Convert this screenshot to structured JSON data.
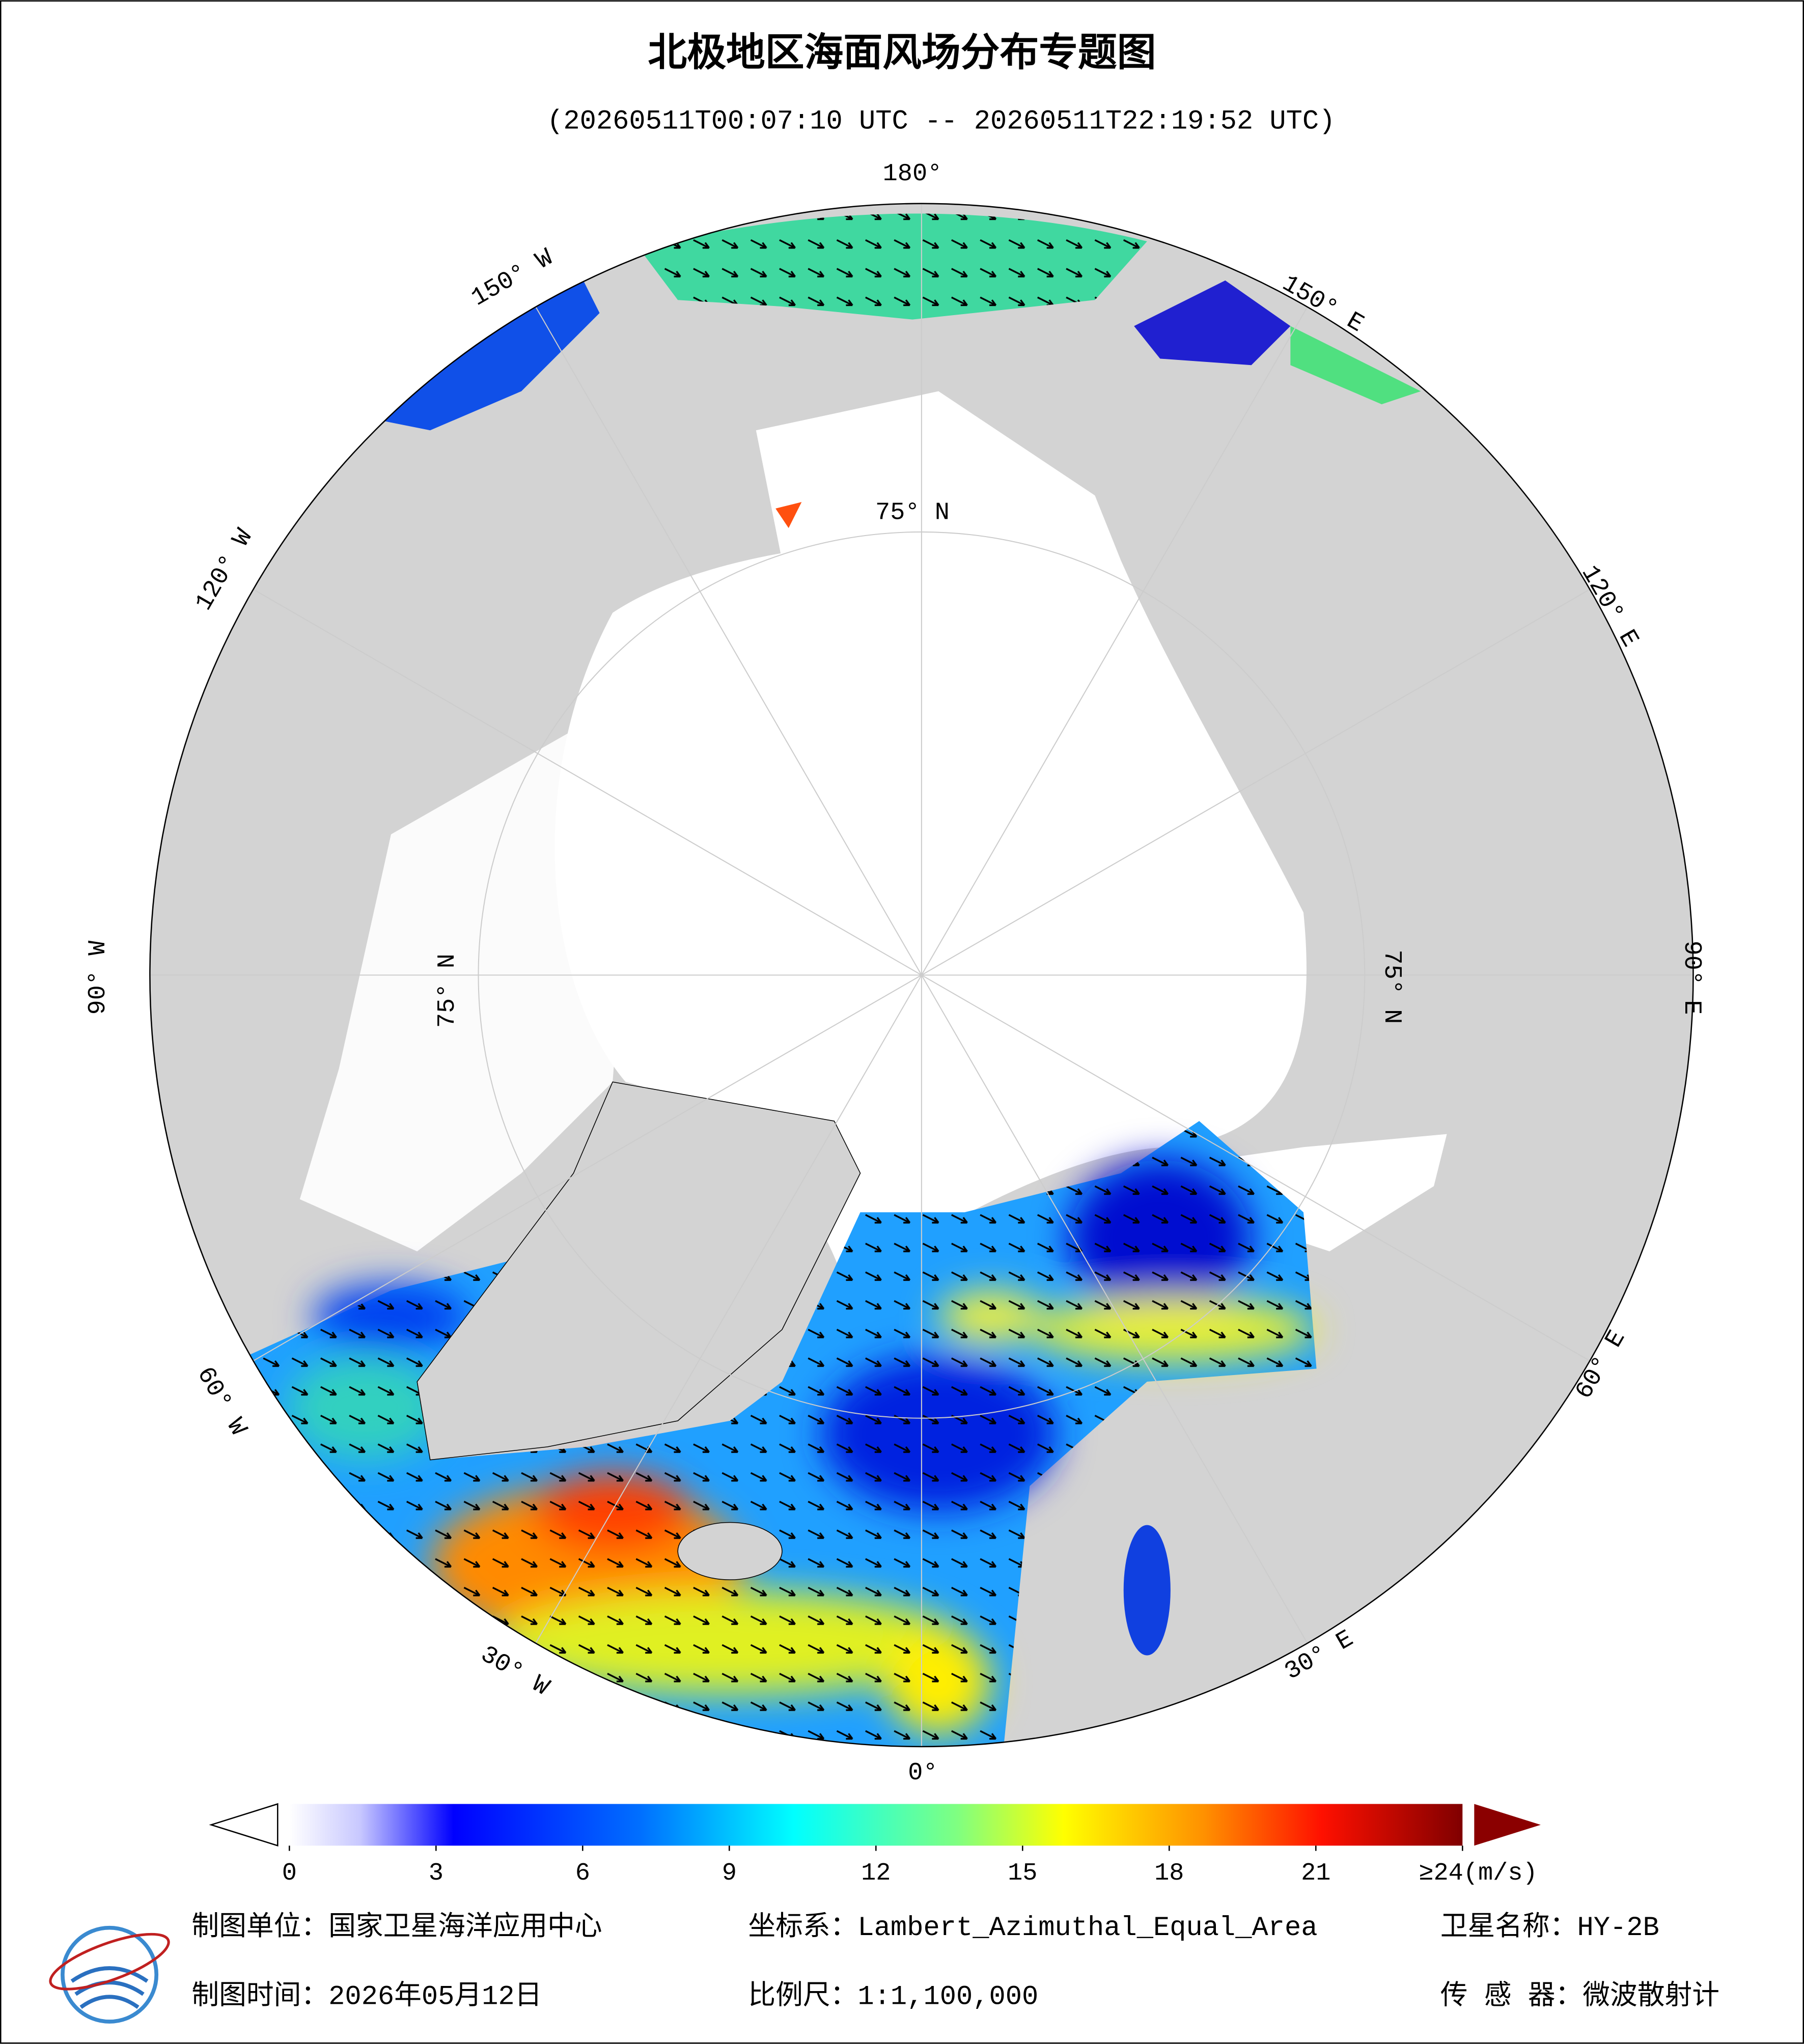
{
  "header": {
    "title": "北极地区海面风场分布专题图",
    "subtitle": "(20260511T00:07:10 UTC -- 20260511T22:19:52 UTC)"
  },
  "map": {
    "lon_labels": [
      "180°",
      "150° E",
      "120° E",
      "90° E",
      "60° E",
      "30° E",
      "0°",
      "30° W",
      "60° W",
      "90° W",
      "120° W",
      "150° W"
    ],
    "lat_labels": [
      "75° N",
      "75° N",
      "75° N"
    ]
  },
  "colorbar": {
    "range": [
      0,
      24
    ],
    "ticks": [
      0,
      3,
      6,
      9,
      12,
      15,
      18,
      21,
      {
        "value": 24,
        "label": "≥24(m/s)"
      }
    ]
  },
  "footer": {
    "unit": "制图单位：国家卫星海洋应用中心",
    "projection": "坐标系：Lambert_Azimuthal_Equal_Area",
    "satellite": "卫星名称：HY-2B",
    "date": "制图时间：2026年05月12日",
    "scale": "比例尺：1:1,100,000",
    "sensor": "传 感 器：微波散射计"
  }
}
